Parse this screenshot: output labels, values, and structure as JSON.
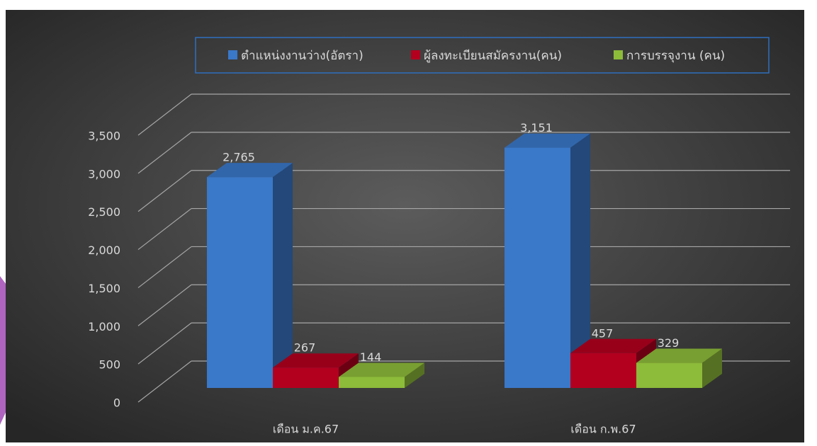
{
  "chart_data": {
    "type": "bar3d",
    "categories": [
      "เดือน ม.ค.67",
      "เดือน ก.พ.67"
    ],
    "series": [
      {
        "name": "ตำแหน่งงานว่าง(อัตรา)",
        "color": "#3a78c9",
        "values": [
          2765,
          3151
        ],
        "value_labels": [
          "2,765",
          "3,151"
        ]
      },
      {
        "name": "ผู้ลงทะเบียนสมัครงาน(คน)",
        "color": "#b3001f",
        "values": [
          267,
          457
        ],
        "value_labels": [
          "267",
          "457"
        ]
      },
      {
        "name": "การบรรจุงาน  (คน)",
        "color": "#8dbb3a",
        "values": [
          144,
          329
        ],
        "value_labels": [
          "144",
          "329"
        ]
      }
    ],
    "ylim": [
      0,
      3500
    ],
    "yticks": [
      0,
      500,
      {
        "value": 1000,
        "label": "1,000"
      },
      {
        "value": 1500,
        "label": "1,500"
      },
      {
        "value": 2000,
        "label": "2,000"
      },
      {
        "value": 2500,
        "label": "2,500"
      },
      {
        "value": 3000,
        "label": "3,000"
      },
      {
        "value": 3500,
        "label": "3,500"
      }
    ],
    "grid": true,
    "legend": "top"
  }
}
